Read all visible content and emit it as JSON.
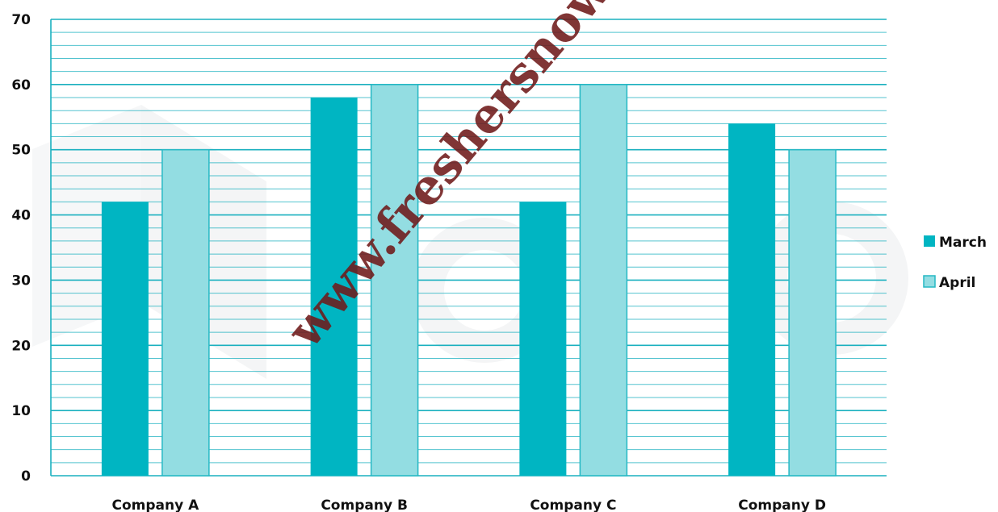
{
  "watermark": {
    "text": "www.freshersnow.c"
  },
  "chart_data": {
    "type": "bar",
    "categories": [
      "Company A",
      "Company B",
      "Company C",
      "Company D"
    ],
    "series": [
      {
        "name": "March",
        "values": [
          42,
          58,
          42,
          54
        ],
        "color": "#00b5c2"
      },
      {
        "name": "April",
        "values": [
          50,
          60,
          60,
          50
        ],
        "color": "#93dde2",
        "border": "#25b8c4"
      }
    ],
    "y_ticks": [
      0,
      10,
      20,
      30,
      40,
      50,
      60,
      70
    ],
    "ylim": [
      0,
      70
    ],
    "minor_gridline_step": 2,
    "grid": true,
    "gridline_color": "#1ab0bf",
    "legend_position": "right"
  }
}
